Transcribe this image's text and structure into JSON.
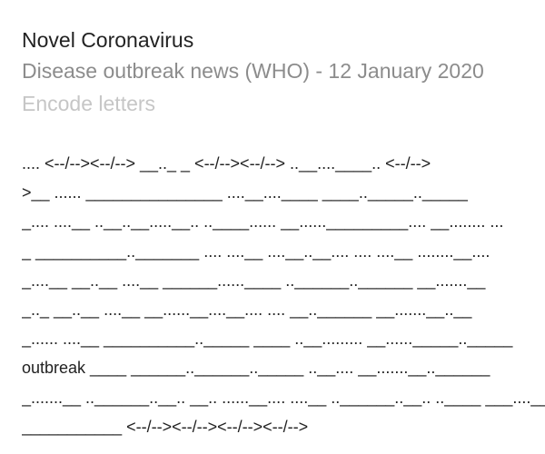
{
  "header": {
    "title": "Novel Coronavirus",
    "subtitle": "Disease outbreak news (WHO) - 12 January 2020",
    "mode_link": "Encode letters"
  },
  "encoded_lines": [
    ".... <--/--><--/--> __.._ _ <--/--><--/--> ..__....____.. <--/--> ",
    ">__ ...... _______________ ....__....____ ____.._____.._____",
    "_.... ....__ ..__..__.....__.. ..____...... __......_________.... __........ ...",
    "_ __________.._______ .... ....__ ....__..__.... .... ....__ ........__....",
    "_....__ __..__ ....__ ______......____ ..______..______ __.......__",
    "_.._ __..__ ....__ __......__....__.... .... __..______ __.......__..__",
    "_...... ....__ __________.._____ ____ ..__......... __......_____.._____",
    "outbreak ____ ______..______.._____ ..__.... __.......__..______",
    "_.......__ ..______..__.. __.. ......__.... ....__ ..______..__.. ..____ ___....__",
    "___________ <--/--><--/--><--/--><--/--> "
  ]
}
